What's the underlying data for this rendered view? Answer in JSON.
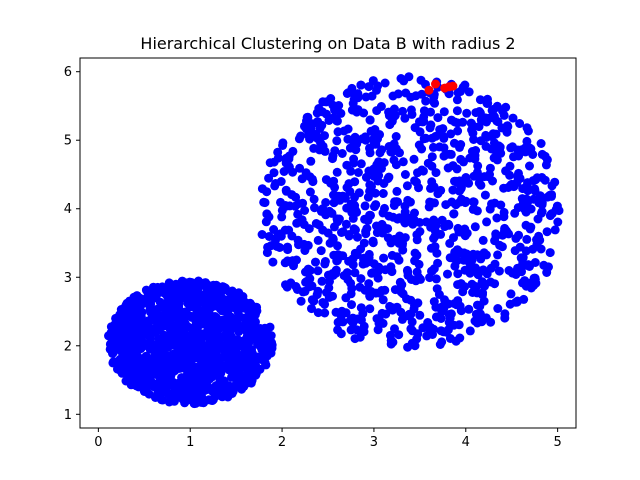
{
  "chart_data": {
    "type": "scatter",
    "title": "Hierarchical Clustering on Data B with radius 2",
    "xlabel": "",
    "ylabel": "",
    "xlim": [
      -0.2,
      5.2
    ],
    "ylim": [
      0.8,
      6.2
    ],
    "x_ticks": [
      "0",
      "1",
      "2",
      "3",
      "4",
      "5"
    ],
    "y_ticks": [
      "1",
      "2",
      "3",
      "4",
      "5",
      "6"
    ],
    "grid": false,
    "legend": "none",
    "series": [
      {
        "color": "#0000ff",
        "clusters": [
          {
            "shape": "filled-disk",
            "center": [
              1.0,
              2.05
            ],
            "radius": 0.9,
            "count": 1100
          },
          {
            "shape": "disk",
            "center": [
              3.4,
              3.95
            ],
            "rx": 1.65,
            "ry": 2.0,
            "count": 1000
          }
        ]
      },
      {
        "color": "#ff0000",
        "points": [
          [
            3.6,
            5.73
          ],
          [
            3.67,
            5.82
          ],
          [
            3.77,
            5.76
          ],
          [
            3.82,
            5.78
          ],
          [
            3.86,
            5.79
          ]
        ]
      }
    ]
  }
}
